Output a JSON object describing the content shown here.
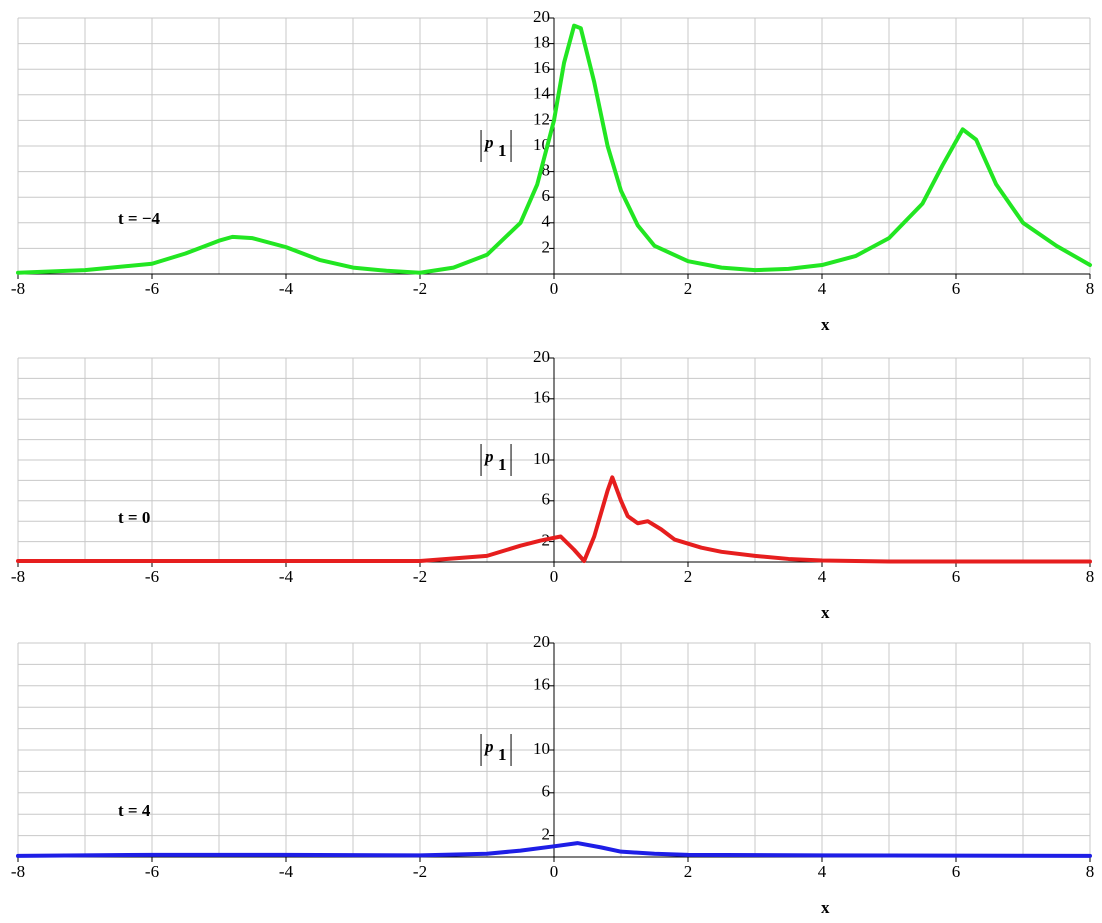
{
  "chart_data": [
    {
      "type": "line",
      "color": "#22e622",
      "annotation": "t = −4",
      "xlabel": "x",
      "ylabel": "p",
      "ylabel_subscript": "1",
      "xlim": [
        -8,
        8
      ],
      "ylim": [
        0,
        20
      ],
      "xticks": [
        -8,
        -6,
        -4,
        -2,
        0,
        2,
        4,
        6,
        8
      ],
      "yticks": [
        2,
        4,
        6,
        8,
        10,
        12,
        14,
        16,
        18,
        20
      ],
      "grid_xticks": [
        -8,
        -7,
        -6,
        -5,
        -4,
        -3,
        -2,
        -1,
        0,
        1,
        2,
        3,
        4,
        5,
        6,
        7,
        8
      ],
      "grid_yticks": [
        2,
        4,
        6,
        8,
        10,
        12,
        14,
        16,
        18,
        20
      ],
      "x": [
        -8,
        -7,
        -6,
        -5.5,
        -5,
        -4.8,
        -4.5,
        -4,
        -3.5,
        -3,
        -2.5,
        -2,
        -1.5,
        -1,
        -0.5,
        -0.25,
        0,
        0.15,
        0.3,
        0.4,
        0.6,
        0.8,
        1,
        1.25,
        1.5,
        2,
        2.5,
        3,
        3.5,
        4,
        4.5,
        5,
        5.5,
        5.8,
        6.1,
        6.3,
        6.6,
        7,
        7.5,
        8
      ],
      "values": [
        0.1,
        0.3,
        0.8,
        1.6,
        2.6,
        2.9,
        2.8,
        2.1,
        1.1,
        0.5,
        0.25,
        0.1,
        0.5,
        1.5,
        4,
        7,
        12,
        16.5,
        19.4,
        19.2,
        15,
        10,
        6.5,
        3.8,
        2.2,
        1,
        0.5,
        0.3,
        0.4,
        0.7,
        1.4,
        2.8,
        5.5,
        8.5,
        11.3,
        10.5,
        7,
        4,
        2.2,
        0.7
      ]
    },
    {
      "type": "line",
      "color": "#e61e1e",
      "annotation": "t = 0",
      "xlabel": "x",
      "ylabel": "p",
      "ylabel_subscript": "1",
      "xlim": [
        -8,
        8
      ],
      "ylim": [
        0,
        20
      ],
      "xticks": [
        -8,
        -6,
        -4,
        -2,
        0,
        2,
        4,
        6,
        8
      ],
      "yticks": [
        2,
        6,
        10,
        16,
        20
      ],
      "grid_xticks": [
        -8,
        -7,
        -6,
        -5,
        -4,
        -3,
        -2,
        -1,
        0,
        1,
        2,
        3,
        4,
        5,
        6,
        7,
        8
      ],
      "grid_yticks": [
        2,
        4,
        6,
        8,
        10,
        12,
        14,
        16,
        18,
        20
      ],
      "x": [
        -8,
        -2,
        -1,
        -0.5,
        -0.2,
        0.1,
        0.3,
        0.45,
        0.6,
        0.8,
        0.87,
        1,
        1.1,
        1.25,
        1.4,
        1.6,
        1.8,
        2.2,
        2.5,
        3,
        3.5,
        4,
        5,
        8
      ],
      "values": [
        0.1,
        0.1,
        0.6,
        1.6,
        2.1,
        2.5,
        1.2,
        0.1,
        2.5,
        7,
        8.3,
        6,
        4.5,
        3.8,
        4,
        3.2,
        2.2,
        1.4,
        1,
        0.6,
        0.3,
        0.15,
        0.05,
        0.05
      ]
    },
    {
      "type": "line",
      "color": "#1e1ee6",
      "annotation": "t = 4",
      "xlabel": "x",
      "ylabel": "p",
      "ylabel_subscript": "1",
      "xlim": [
        -8,
        8
      ],
      "ylim": [
        0,
        20
      ],
      "xticks": [
        -8,
        -6,
        -4,
        -2,
        0,
        2,
        4,
        6,
        8
      ],
      "yticks": [
        2,
        6,
        10,
        16,
        20
      ],
      "grid_xticks": [
        -8,
        -7,
        -6,
        -5,
        -4,
        -3,
        -2,
        -1,
        0,
        1,
        2,
        3,
        4,
        5,
        6,
        7,
        8
      ],
      "grid_yticks": [
        2,
        4,
        6,
        8,
        10,
        12,
        14,
        16,
        18,
        20
      ],
      "x": [
        -8,
        -6,
        -4,
        -2,
        -1,
        -0.5,
        0,
        0.35,
        0.7,
        1,
        1.5,
        2,
        4,
        8
      ],
      "values": [
        0.1,
        0.2,
        0.2,
        0.15,
        0.3,
        0.6,
        1,
        1.3,
        0.9,
        0.5,
        0.3,
        0.2,
        0.15,
        0.1
      ]
    }
  ]
}
